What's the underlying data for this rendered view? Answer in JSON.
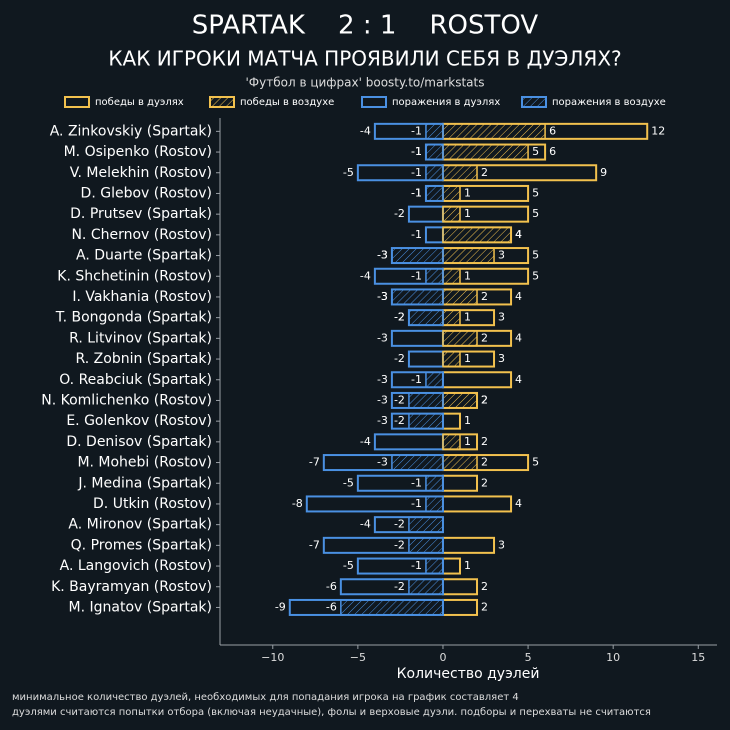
{
  "chart_data": {
    "type": "diverging-bar",
    "title": "SPARTAK    2 : 1    ROSTOV",
    "subtitle": "КАК ИГРОКИ МАТЧА ПРОЯВИЛИ СЕБЯ В ДУЭЛЯХ?",
    "source": "'Футбол в цифрах' boosty.to/markstats",
    "xlabel": "Количество дуэлей",
    "footnotes": [
      "минимальное количество дуэлей, необходимых для попадания игрока на график составляет 4",
      "дуэлями считаются попытки отбора (включая неудачные), фолы и верховые дуэли. подборы и перехваты не считаются"
    ],
    "categories": [
      "A. Zinkovskiy (Spartak)",
      "M. Osipenko (Rostov)",
      "V. Melekhin (Rostov)",
      "D. Glebov (Rostov)",
      "D. Prutsev (Spartak)",
      "N. Chernov (Rostov)",
      "A. Duarte (Spartak)",
      "K. Shchetinin (Rostov)",
      "I. Vakhania (Rostov)",
      "T. Bongonda (Spartak)",
      "R. Litvinov (Spartak)",
      "R. Zobnin (Spartak)",
      "O. Reabciuk (Spartak)",
      "N. Komlichenko (Rostov)",
      "E. Golenkov (Rostov)",
      "D. Denisov (Spartak)",
      "M. Mohebi (Rostov)",
      "J. Medina (Spartak)",
      "D. Utkin (Rostov)",
      "A. Mironov (Spartak)",
      "Q. Promes (Spartak)",
      "A. Langovich (Rostov)",
      "K. Bayramyan (Rostov)",
      "M. Ignatov (Spartak)"
    ],
    "series": [
      {
        "name": "победы в дуэлях",
        "color": "#f2c14e",
        "hatch": false,
        "values": [
          12,
          6,
          9,
          5,
          5,
          4,
          5,
          5,
          4,
          3,
          4,
          3,
          4,
          2,
          1,
          2,
          5,
          2,
          4,
          0,
          3,
          1,
          2,
          2
        ]
      },
      {
        "name": "победы в воздухе",
        "color": "#f2c14e",
        "hatch": true,
        "values": [
          6,
          5,
          2,
          1,
          1,
          4,
          3,
          1,
          2,
          1,
          2,
          1,
          0,
          2,
          0,
          1,
          2,
          0,
          0,
          0,
          0,
          0,
          0,
          0
        ]
      },
      {
        "name": "поражения в дуэлях",
        "color": "#4a90e2",
        "hatch": false,
        "values": [
          -4,
          -1,
          -5,
          -1,
          -2,
          -1,
          -3,
          -4,
          -3,
          -2,
          -3,
          -2,
          -3,
          -3,
          -3,
          -4,
          -7,
          -5,
          -8,
          -4,
          -7,
          -5,
          -6,
          -9
        ]
      },
      {
        "name": "поражения в воздухе",
        "color": "#4a90e2",
        "hatch": true,
        "values": [
          -1,
          -1,
          -1,
          -1,
          0,
          0,
          -3,
          -1,
          -3,
          -2,
          0,
          0,
          -1,
          -2,
          -2,
          0,
          -3,
          -1,
          -1,
          -2,
          -2,
          -1,
          -2,
          -6
        ]
      }
    ],
    "xlim": [
      -13.1,
      16.1
    ],
    "xticks": [
      {
        "value": -10,
        "label": "−10"
      },
      {
        "value": -5,
        "label": "−5"
      },
      0,
      5,
      10,
      15
    ]
  }
}
